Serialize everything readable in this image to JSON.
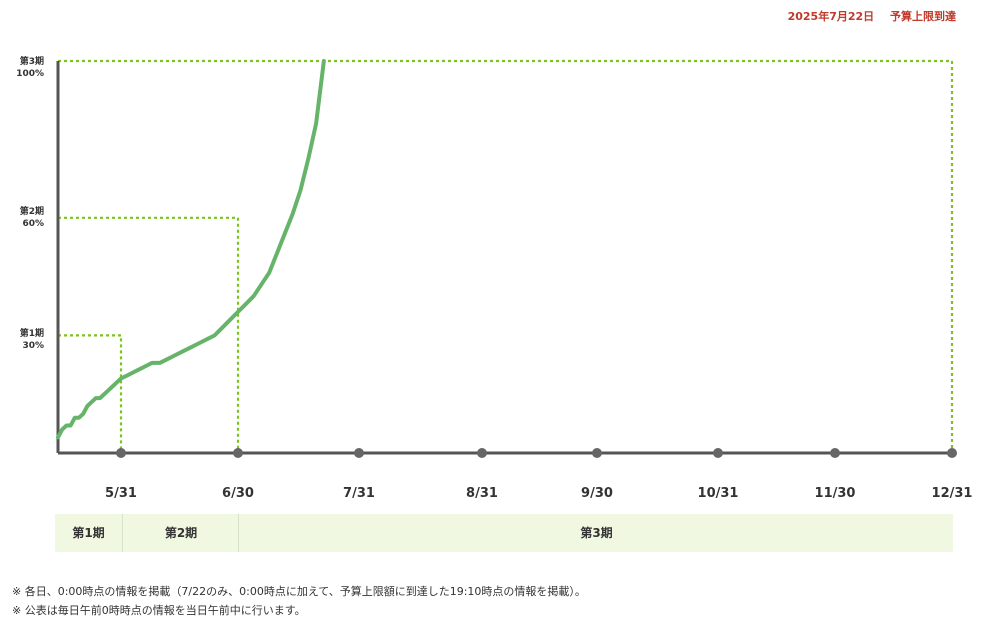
{
  "status": {
    "date": "2025年7月22日",
    "text": "予算上限到達"
  },
  "y_labels": [
    {
      "period": "第3期",
      "pct": "100%",
      "value": 100
    },
    {
      "period": "第2期",
      "pct": "60%",
      "value": 60
    },
    {
      "period": "第1期",
      "pct": "30%",
      "value": 30
    }
  ],
  "periods": [
    {
      "label": "第1期"
    },
    {
      "label": "第2期"
    },
    {
      "label": "第3期"
    }
  ],
  "notes": [
    "※ 各日、0:00時点の情報を掲載（7/22のみ、0:00時点に加えて、予算上限額に到達した19:10時点の情報を掲載）。",
    "※ 公表は毎日午前0時時点の情報を当日午前中に行います。"
  ],
  "colors": {
    "line": "#66b36a",
    "threshold": "#7dc21e",
    "axis": "#555555",
    "status": "#c0392b",
    "band": "#f0f8e2"
  },
  "chart_data": {
    "type": "line",
    "x_ticks": [
      "5/31",
      "6/30",
      "7/31",
      "8/31",
      "9/30",
      "10/31",
      "11/30",
      "12/31"
    ],
    "x_tick_days": [
      30,
      60,
      91,
      122,
      152,
      183,
      213,
      244
    ],
    "ylim": [
      0,
      100
    ],
    "x_range_days": [
      0,
      244
    ],
    "thresholds": [
      {
        "label": "第1期",
        "value": 30,
        "end_label": "5/31",
        "end_day": 30
      },
      {
        "label": "第2期",
        "value": 60,
        "end_label": "6/30",
        "end_day": 60
      },
      {
        "label": "第3期",
        "value": 100,
        "end_label": "12/31",
        "end_day": 244
      }
    ],
    "series": [
      {
        "name": "",
        "points": [
          [
            0,
            4
          ],
          [
            2,
            6
          ],
          [
            4,
            7
          ],
          [
            6,
            7
          ],
          [
            8,
            9
          ],
          [
            10,
            9
          ],
          [
            12,
            10
          ],
          [
            14,
            12
          ],
          [
            16,
            13
          ],
          [
            18,
            14
          ],
          [
            20,
            14
          ],
          [
            22,
            15
          ],
          [
            24,
            16
          ],
          [
            26,
            17
          ],
          [
            28,
            18
          ],
          [
            30,
            19
          ],
          [
            32,
            20
          ],
          [
            34,
            21
          ],
          [
            36,
            22
          ],
          [
            38,
            23
          ],
          [
            40,
            23
          ],
          [
            42,
            24
          ],
          [
            44,
            25
          ],
          [
            46,
            26
          ],
          [
            48,
            27
          ],
          [
            50,
            28
          ],
          [
            52,
            29
          ],
          [
            54,
            30
          ],
          [
            56,
            32
          ],
          [
            58,
            34
          ],
          [
            60,
            36
          ],
          [
            62,
            38
          ],
          [
            64,
            40
          ],
          [
            66,
            43
          ],
          [
            68,
            46
          ],
          [
            70,
            51
          ],
          [
            72,
            56
          ],
          [
            74,
            61
          ],
          [
            76,
            67
          ],
          [
            78,
            75
          ],
          [
            80,
            84
          ],
          [
            82,
            100
          ]
        ]
      }
    ]
  }
}
